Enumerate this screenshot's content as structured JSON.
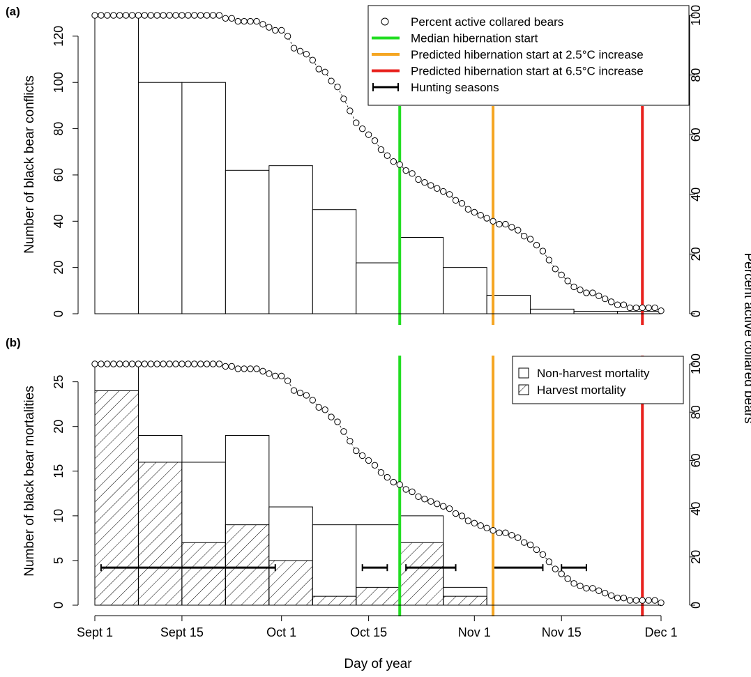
{
  "chart_data": [
    {
      "type": "bar",
      "panel_label": "(a)",
      "ylabel": "Number of black bear conflicts",
      "y2label": "Percent active collared bears",
      "xlim": [
        0,
        91
      ],
      "ylim": [
        0,
        129
      ],
      "y2lim": [
        0,
        100
      ],
      "y_ticks": [
        0,
        20,
        40,
        60,
        80,
        100,
        120
      ],
      "y2_ticks": [
        0,
        20,
        40,
        60,
        80,
        100
      ],
      "bins": [
        {
          "start": 0,
          "end": 7,
          "value": 129
        },
        {
          "start": 7,
          "end": 14,
          "value": 100
        },
        {
          "start": 14,
          "end": 21,
          "value": 100
        },
        {
          "start": 21,
          "end": 28,
          "value": 62
        },
        {
          "start": 28,
          "end": 35,
          "value": 64
        },
        {
          "start": 35,
          "end": 42,
          "value": 45
        },
        {
          "start": 42,
          "end": 49,
          "value": 22
        },
        {
          "start": 49,
          "end": 56,
          "value": 33
        },
        {
          "start": 56,
          "end": 63,
          "value": 20
        },
        {
          "start": 63,
          "end": 70,
          "value": 8
        },
        {
          "start": 70,
          "end": 77,
          "value": 2
        },
        {
          "start": 77,
          "end": 84,
          "value": 1
        },
        {
          "start": 84,
          "end": 91,
          "value": 1
        }
      ],
      "legend": {
        "position": "top-right",
        "entries": [
          {
            "label": "Percent active collared bears",
            "kind": "circle",
            "color": "#000000"
          },
          {
            "label": "Median hibernation start",
            "kind": "line",
            "color": "#22dd22"
          },
          {
            "label": "Predicted hibernation start at 2.5°C increase",
            "kind": "line",
            "color": "#f5a623"
          },
          {
            "label": "Predicted hibernation start at 6.5°C increase",
            "kind": "line",
            "color": "#e8201c"
          },
          {
            "label": "Hunting seasons",
            "kind": "errorbar",
            "color": "#000000"
          }
        ]
      }
    },
    {
      "type": "bar",
      "panel_label": "(b)",
      "ylabel": "Number of black bear mortalities",
      "y2label": "Percent active collared bears",
      "xlim": [
        0,
        91
      ],
      "ylim": [
        0,
        27
      ],
      "y2lim": [
        0,
        100
      ],
      "y_ticks": [
        0,
        5,
        10,
        15,
        20,
        25
      ],
      "y2_ticks": [
        0,
        20,
        40,
        60,
        80,
        100
      ],
      "bins": [
        {
          "start": 0,
          "end": 7,
          "total": 27,
          "harvest": 24
        },
        {
          "start": 7,
          "end": 14,
          "total": 19,
          "harvest": 16
        },
        {
          "start": 14,
          "end": 21,
          "total": 16,
          "harvest": 7
        },
        {
          "start": 21,
          "end": 28,
          "total": 19,
          "harvest": 9
        },
        {
          "start": 28,
          "end": 35,
          "total": 11,
          "harvest": 5
        },
        {
          "start": 35,
          "end": 42,
          "total": 9,
          "harvest": 1
        },
        {
          "start": 42,
          "end": 49,
          "total": 9,
          "harvest": 2
        },
        {
          "start": 49,
          "end": 56,
          "total": 10,
          "harvest": 7
        },
        {
          "start": 56,
          "end": 63,
          "total": 2,
          "harvest": 1
        }
      ],
      "hunting_seasons": [
        {
          "start": 1,
          "end": 29,
          "y": 4.2
        },
        {
          "start": 43,
          "end": 47,
          "y": 4.2
        },
        {
          "start": 50,
          "end": 58,
          "y": 4.2
        },
        {
          "start": 64,
          "end": 72,
          "y": 4.2
        },
        {
          "start": 75,
          "end": 79,
          "y": 4.2
        }
      ],
      "legend": {
        "position": "top-right",
        "entries": [
          {
            "label": "Non-harvest mortality",
            "kind": "box"
          },
          {
            "label": "Harvest mortality",
            "kind": "hatched-box"
          }
        ]
      }
    }
  ],
  "shared": {
    "xlabel": "Day of year",
    "x_ticks": [
      {
        "day": 0,
        "label": "Sept 1"
      },
      {
        "day": 14,
        "label": "Sept 15"
      },
      {
        "day": 30,
        "label": "Oct 1"
      },
      {
        "day": 44,
        "label": "Oct 15"
      },
      {
        "day": 61,
        "label": "Nov 1"
      },
      {
        "day": 75,
        "label": "Nov 15"
      },
      {
        "day": 91,
        "label": "Dec 1"
      }
    ],
    "vertical_lines": [
      {
        "day": 49,
        "color": "#22dd22",
        "name": "Median hibernation start"
      },
      {
        "day": 64,
        "color": "#f5a623",
        "name": "Predicted hibernation start at 2.5°C increase"
      },
      {
        "day": 88,
        "color": "#e8201c",
        "name": "Predicted hibernation start at 6.5°C increase"
      }
    ],
    "percent_active": {
      "days": [
        0,
        1,
        2,
        3,
        4,
        5,
        6,
        7,
        8,
        9,
        10,
        11,
        12,
        13,
        14,
        15,
        16,
        17,
        18,
        19,
        20,
        21,
        22,
        23,
        24,
        25,
        26,
        27,
        28,
        29,
        30,
        31,
        32,
        33,
        34,
        35,
        36,
        37,
        38,
        39,
        40,
        41,
        42,
        43,
        44,
        45,
        46,
        47,
        48,
        49,
        50,
        51,
        52,
        53,
        54,
        55,
        56,
        57,
        58,
        59,
        60,
        61,
        62,
        63,
        64,
        65,
        66,
        67,
        68,
        69,
        70,
        71,
        72,
        73,
        74,
        75,
        76,
        77,
        78,
        79,
        80,
        81,
        82,
        83,
        84,
        85,
        86,
        87,
        88,
        89,
        90,
        91
      ],
      "values": [
        100,
        100,
        100,
        100,
        100,
        100,
        100,
        100,
        100,
        100,
        100,
        100,
        100,
        100,
        100,
        100,
        100,
        100,
        100,
        100,
        100,
        99,
        99,
        98,
        98,
        98,
        98,
        97,
        96,
        95,
        95,
        93,
        89,
        88,
        87,
        85,
        82,
        81,
        78,
        76,
        72,
        68,
        64,
        62,
        60,
        58,
        55,
        53,
        51,
        50,
        48,
        47,
        45,
        44,
        43,
        42,
        41,
        40,
        38,
        37,
        35,
        34,
        33,
        32,
        31,
        30,
        30,
        29,
        28,
        26,
        25,
        23,
        21,
        18,
        15,
        13,
        11,
        9,
        8,
        7,
        7,
        6,
        5,
        4,
        3,
        3,
        2,
        2,
        2,
        2,
        2,
        1
      ]
    }
  }
}
